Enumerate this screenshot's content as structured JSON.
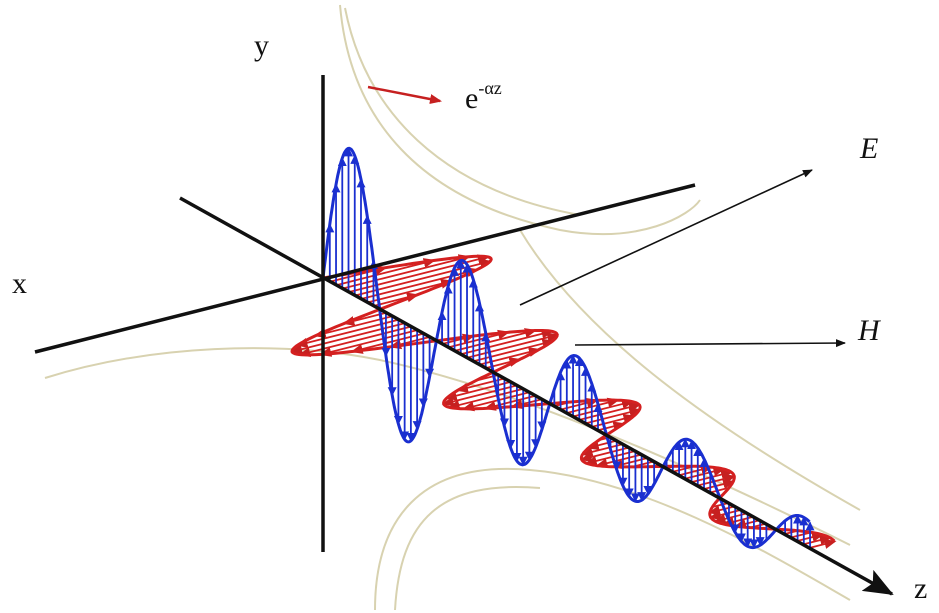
{
  "labels": {
    "y_axis": "y",
    "x_axis": "x",
    "z_axis": "z",
    "electric_field": "E",
    "magnetic_field": "H",
    "attenuation_base": "e",
    "attenuation_exponent": "-αz"
  }
}
